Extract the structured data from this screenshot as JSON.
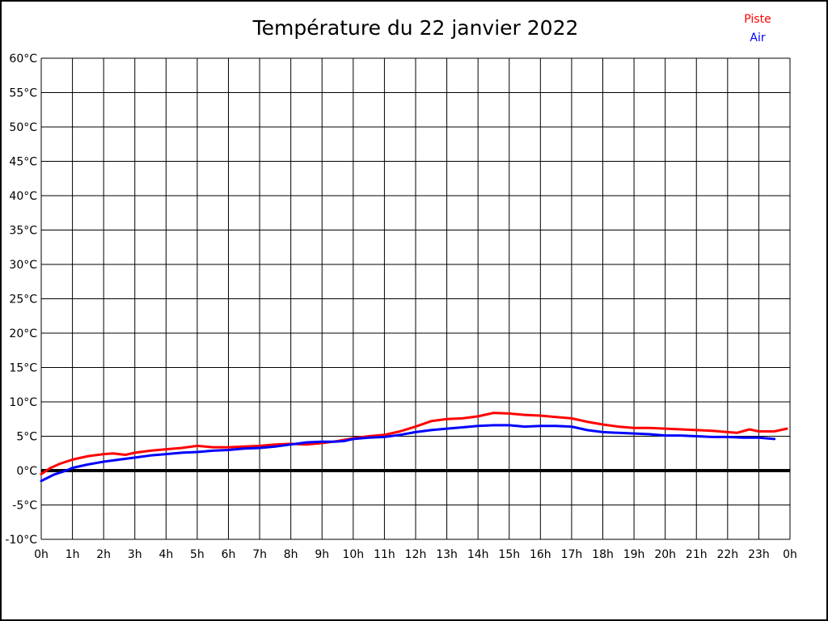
{
  "page": {
    "title": "Température du 22 janvier 2022"
  },
  "chart_data": {
    "type": "line",
    "title": "Température du 22 janvier 2022",
    "xlabel": "",
    "ylabel": "",
    "xlim": [
      0,
      24
    ],
    "ylim": [
      -10,
      60
    ],
    "grid": true,
    "legend_position": "top-right",
    "x_ticks": [
      0,
      1,
      2,
      3,
      4,
      5,
      6,
      7,
      8,
      9,
      10,
      11,
      12,
      13,
      14,
      15,
      16,
      17,
      18,
      19,
      20,
      21,
      22,
      23,
      24
    ],
    "x_tick_labels": [
      "0h",
      "1h",
      "2h",
      "3h",
      "4h",
      "5h",
      "6h",
      "7h",
      "8h",
      "9h",
      "10h",
      "11h",
      "12h",
      "13h",
      "14h",
      "15h",
      "16h",
      "17h",
      "18h",
      "19h",
      "20h",
      "21h",
      "22h",
      "23h",
      "0h"
    ],
    "y_ticks": [
      60,
      55,
      50,
      45,
      40,
      35,
      30,
      25,
      20,
      15,
      10,
      5,
      0,
      -5,
      -10
    ],
    "y_tick_labels": [
      "60°C",
      "55°C",
      "50°C",
      "45°C",
      "40°C",
      "35°C",
      "30°C",
      "25°C",
      "20°C",
      "15°C",
      "10°C",
      "5°C",
      "0°C",
      "-5°C",
      "-10°C"
    ],
    "zero_line": {
      "value": 0,
      "color": "#000000"
    },
    "series": [
      {
        "name": "Piste",
        "color": "#ff0000",
        "points": [
          [
            0,
            -0.5
          ],
          [
            0.3,
            0.4
          ],
          [
            0.6,
            1.0
          ],
          [
            1,
            1.6
          ],
          [
            1.5,
            2.1
          ],
          [
            2,
            2.4
          ],
          [
            2.3,
            2.5
          ],
          [
            2.7,
            2.3
          ],
          [
            3,
            2.6
          ],
          [
            3.5,
            2.9
          ],
          [
            4,
            3.1
          ],
          [
            4.5,
            3.3
          ],
          [
            5,
            3.6
          ],
          [
            5.5,
            3.4
          ],
          [
            6,
            3.4
          ],
          [
            6.5,
            3.5
          ],
          [
            7,
            3.6
          ],
          [
            7.5,
            3.8
          ],
          [
            8,
            3.9
          ],
          [
            8.5,
            3.8
          ],
          [
            9,
            4.0
          ],
          [
            9.5,
            4.3
          ],
          [
            10,
            4.7
          ],
          [
            10.5,
            5.0
          ],
          [
            11,
            5.2
          ],
          [
            11.5,
            5.7
          ],
          [
            12,
            6.4
          ],
          [
            12.5,
            7.2
          ],
          [
            13,
            7.5
          ],
          [
            13.5,
            7.6
          ],
          [
            14,
            7.9
          ],
          [
            14.5,
            8.4
          ],
          [
            15,
            8.3
          ],
          [
            15.5,
            8.1
          ],
          [
            16,
            8.0
          ],
          [
            16.5,
            7.8
          ],
          [
            17,
            7.6
          ],
          [
            17.5,
            7.1
          ],
          [
            18,
            6.7
          ],
          [
            18.5,
            6.4
          ],
          [
            19,
            6.2
          ],
          [
            19.5,
            6.2
          ],
          [
            20,
            6.1
          ],
          [
            20.5,
            6.0
          ],
          [
            21,
            5.9
          ],
          [
            21.5,
            5.8
          ],
          [
            22,
            5.6
          ],
          [
            22.3,
            5.5
          ],
          [
            22.7,
            6.0
          ],
          [
            23,
            5.7
          ],
          [
            23.5,
            5.7
          ],
          [
            23.9,
            6.1
          ]
        ]
      },
      {
        "name": "Air",
        "color": "#0000ff",
        "points": [
          [
            0,
            -1.5
          ],
          [
            0.4,
            -0.6
          ],
          [
            0.8,
            0.0
          ],
          [
            1,
            0.4
          ],
          [
            1.5,
            0.9
          ],
          [
            2,
            1.3
          ],
          [
            2.5,
            1.6
          ],
          [
            3,
            1.9
          ],
          [
            3.5,
            2.2
          ],
          [
            4,
            2.4
          ],
          [
            4.5,
            2.6
          ],
          [
            5,
            2.7
          ],
          [
            5.5,
            2.9
          ],
          [
            6,
            3.0
          ],
          [
            6.5,
            3.2
          ],
          [
            7,
            3.3
          ],
          [
            7.5,
            3.5
          ],
          [
            8,
            3.8
          ],
          [
            8.5,
            4.1
          ],
          [
            9,
            4.2
          ],
          [
            9.4,
            4.2
          ],
          [
            9.7,
            4.3
          ],
          [
            10,
            4.6
          ],
          [
            10.5,
            4.8
          ],
          [
            11,
            4.9
          ],
          [
            11.5,
            5.2
          ],
          [
            12,
            5.6
          ],
          [
            12.5,
            5.9
          ],
          [
            13,
            6.1
          ],
          [
            13.5,
            6.3
          ],
          [
            14,
            6.5
          ],
          [
            14.5,
            6.6
          ],
          [
            15,
            6.6
          ],
          [
            15.5,
            6.4
          ],
          [
            16,
            6.5
          ],
          [
            16.5,
            6.5
          ],
          [
            17,
            6.4
          ],
          [
            17.5,
            5.9
          ],
          [
            18,
            5.6
          ],
          [
            18.5,
            5.5
          ],
          [
            19,
            5.4
          ],
          [
            19.5,
            5.3
          ],
          [
            20,
            5.1
          ],
          [
            20.5,
            5.1
          ],
          [
            21,
            5.0
          ],
          [
            21.5,
            4.9
          ],
          [
            22,
            4.9
          ],
          [
            22.5,
            4.8
          ],
          [
            23,
            4.8
          ],
          [
            23.5,
            4.6
          ]
        ]
      }
    ]
  }
}
